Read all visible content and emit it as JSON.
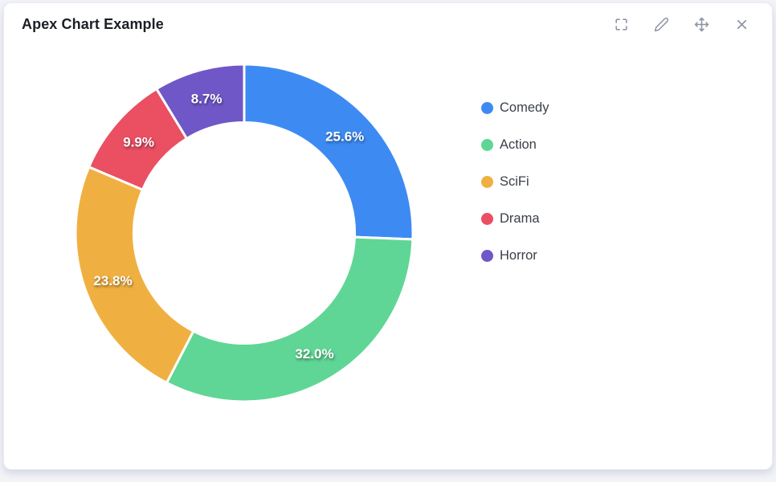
{
  "header": {
    "title": "Apex Chart Example",
    "actions": [
      {
        "name": "fullscreen",
        "icon": "fullscreen-icon"
      },
      {
        "name": "edit",
        "icon": "pencil-icon"
      },
      {
        "name": "move",
        "icon": "move-icon"
      },
      {
        "name": "close",
        "icon": "close-icon"
      }
    ]
  },
  "chart_data": {
    "type": "pie",
    "subtype": "donut",
    "title": "Apex Chart Example",
    "labels": [
      "Comedy",
      "Action",
      "SciFi",
      "Drama",
      "Horror"
    ],
    "values_percent": [
      25.6,
      32.0,
      23.8,
      9.9,
      8.7
    ],
    "data_labels": [
      "25.6%",
      "32.0%",
      "23.8%",
      "9.9%",
      "8.7%"
    ],
    "colors": [
      "#3d8bf2",
      "#5fd695",
      "#f0b041",
      "#ea4f62",
      "#7057c7"
    ],
    "legend_position": "right",
    "start_angle_deg": 0,
    "direction": "clockwise",
    "donut_hole_ratio": 0.655,
    "stroke_color": "#ffffff",
    "data_label_color": "#ffffff"
  },
  "colors": {
    "page_bg": "#f3f4f8",
    "card_bg": "#ffffff",
    "card_border": "#e7eaf3",
    "title_text": "#1b1e25",
    "icon_gray": "#8d93a2",
    "legend_text": "#3b4049"
  }
}
